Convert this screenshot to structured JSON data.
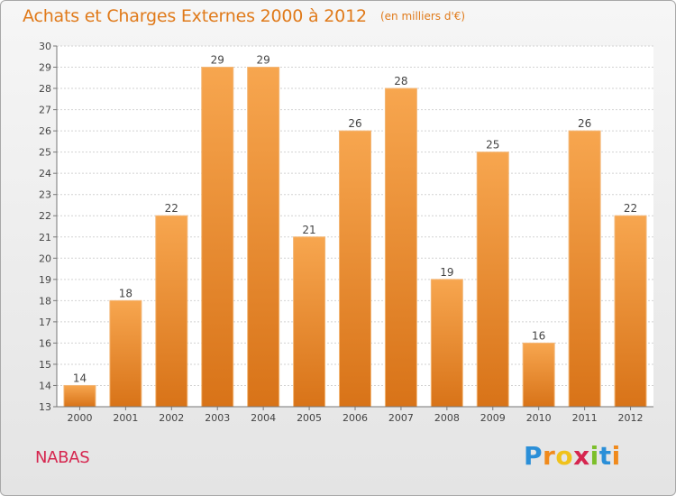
{
  "header": {
    "title": "Achats et Charges Externes 2000 à 2012",
    "unit": "(en milliers d'€)"
  },
  "footer": {
    "commune": "NABAS",
    "logo": "Proxiti"
  },
  "colors": {
    "title": "#e07a1a",
    "bar_light": "#f7a64f",
    "bar_dark": "#d87318",
    "commune": "#d6264f"
  },
  "chart_data": {
    "type": "bar",
    "title": "Achats et Charges Externes 2000 à 2012",
    "subtitle": "(en milliers d'€)",
    "xlabel": "",
    "ylabel": "",
    "categories": [
      "2000",
      "2001",
      "2002",
      "2003",
      "2004",
      "2005",
      "2006",
      "2007",
      "2008",
      "2009",
      "2010",
      "2011",
      "2012"
    ],
    "values": [
      14,
      18,
      22,
      29,
      29,
      21,
      26,
      28,
      19,
      25,
      16,
      26,
      22
    ],
    "ylim": [
      13,
      30
    ],
    "yticks": [
      13,
      14,
      15,
      16,
      17,
      18,
      19,
      20,
      21,
      22,
      23,
      24,
      25,
      26,
      27,
      28,
      29,
      30
    ],
    "grid": true,
    "legend": "none"
  }
}
